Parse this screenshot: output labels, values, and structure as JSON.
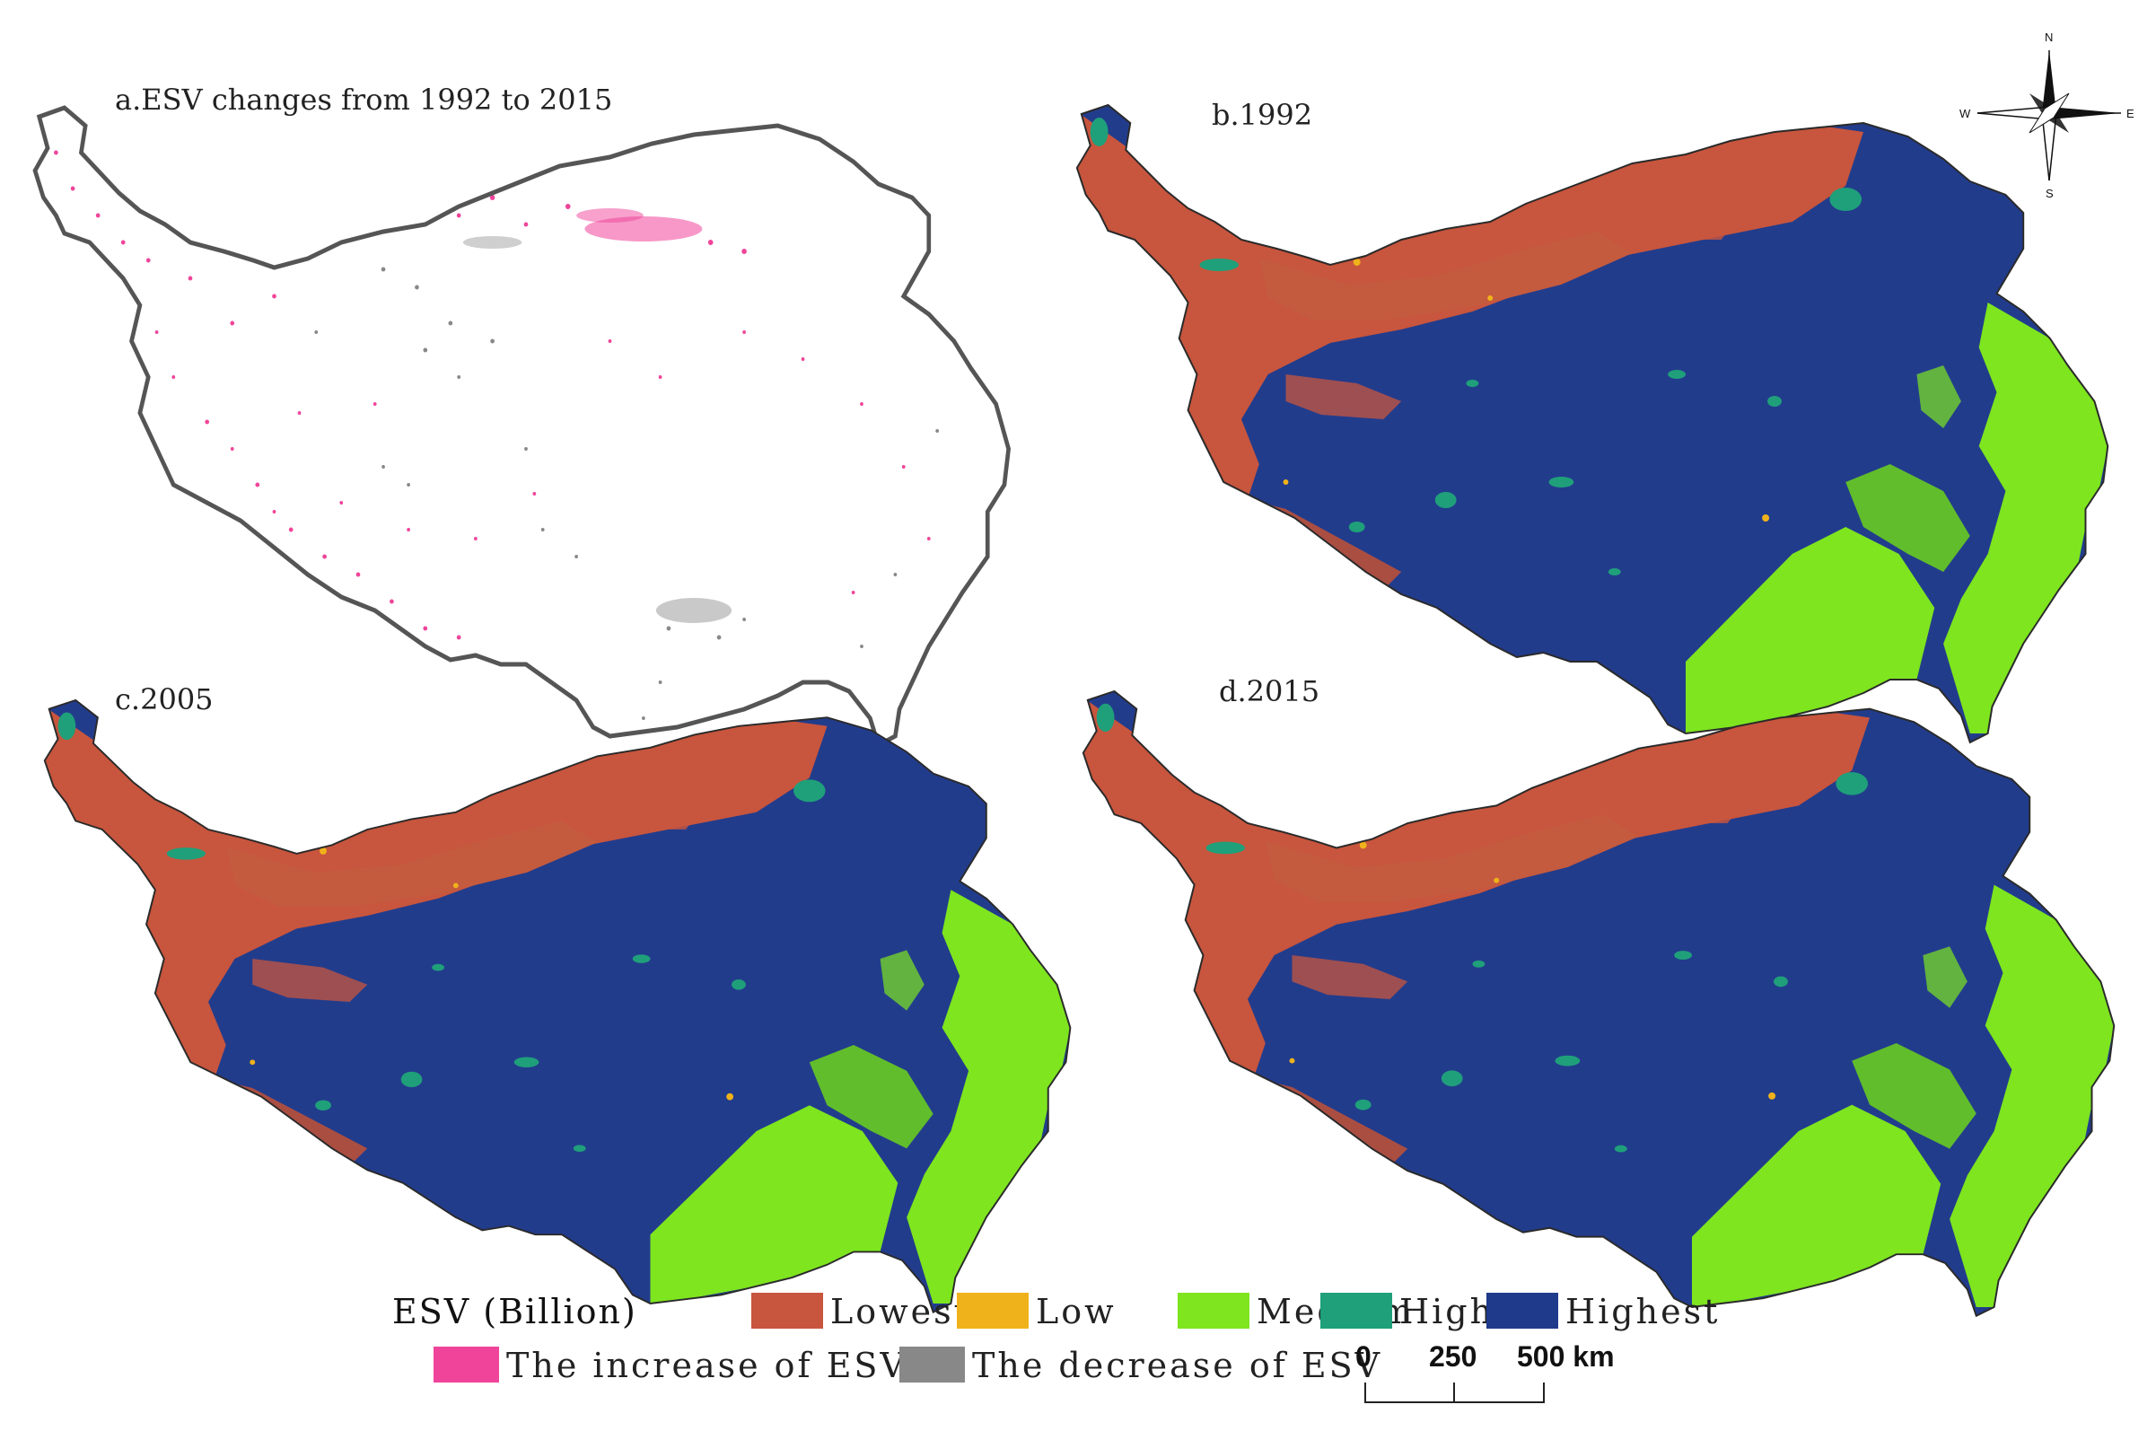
{
  "panels": [
    {
      "id": "a",
      "title": "a.ESV changes from 1992 to 2015"
    },
    {
      "id": "b",
      "title": "b.1992"
    },
    {
      "id": "c",
      "title": "c.2005"
    },
    {
      "id": "d",
      "title": "d.2015"
    }
  ],
  "legend": {
    "title": "ESV (Billion)",
    "classes": [
      {
        "label": "Lowest",
        "color": "#c8553d"
      },
      {
        "label": "Low",
        "color": "#f0b21a"
      },
      {
        "label": "Medium",
        "color": "#7ee51f"
      },
      {
        "label": "High",
        "color": "#1fa07a"
      },
      {
        "label": "Highest",
        "color": "#1f3a8a"
      }
    ],
    "changes": [
      {
        "label": "The increase of ESV",
        "color": "#f0449a"
      },
      {
        "label": "The decrease of ESV",
        "color": "#888888"
      }
    ]
  },
  "scale_bar": {
    "ticks": [
      "0",
      "250",
      "500 km"
    ]
  },
  "north_arrow": {
    "n": "N",
    "s": "S",
    "e": "E",
    "w": "W"
  }
}
